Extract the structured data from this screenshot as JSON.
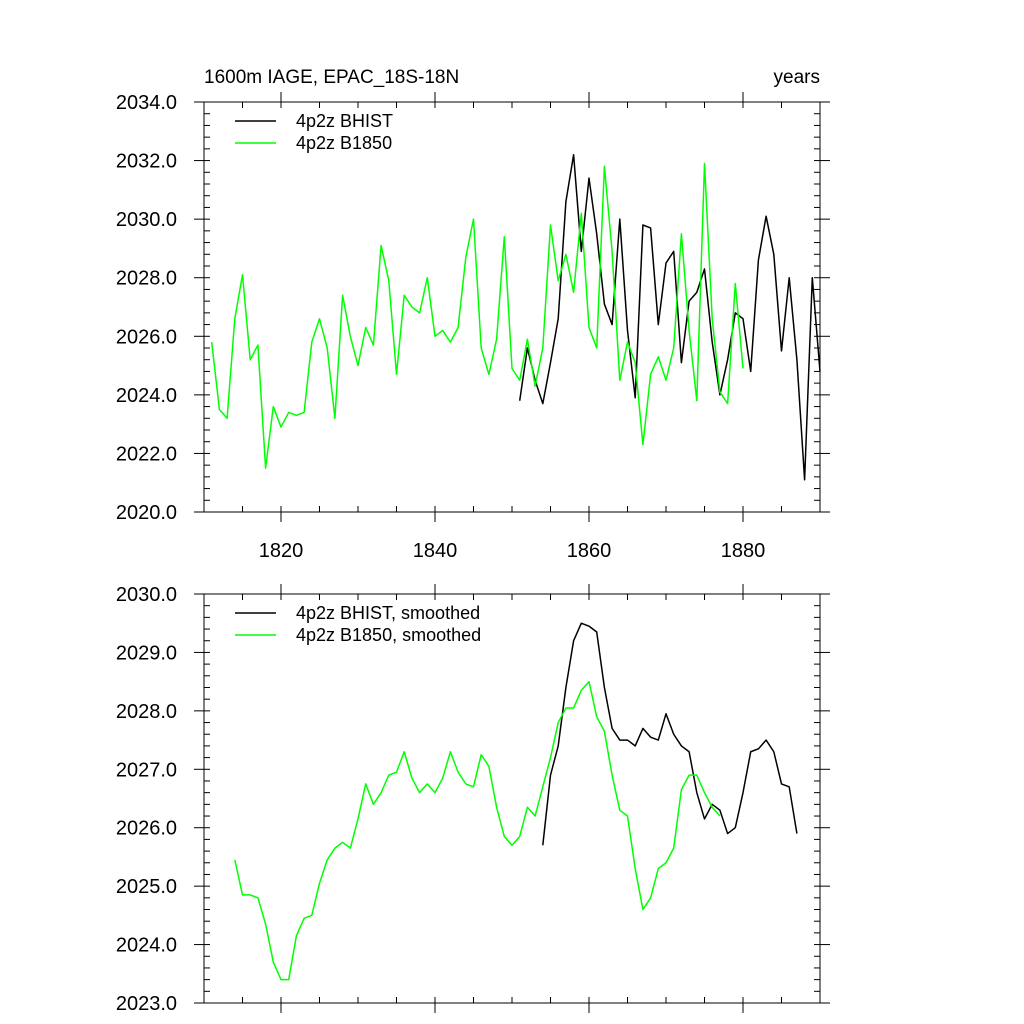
{
  "chart_data": [
    {
      "type": "line",
      "title": "1600m IAGE, EPAC_18S-18N",
      "title_right": "years",
      "xlabel": "",
      "ylabel": "",
      "xlim": [
        1810,
        1890
      ],
      "ylim": [
        2020,
        2034
      ],
      "xticks": [
        1820,
        1840,
        1860,
        1880
      ],
      "xtick_labels": [
        "1820",
        "1840",
        "1860",
        "1880"
      ],
      "yticks": [
        2020,
        2022,
        2024,
        2026,
        2028,
        2030,
        2032,
        2034
      ],
      "ytick_labels": [
        "2020.0",
        "2022.0",
        "2024.0",
        "2026.0",
        "2028.0",
        "2030.0",
        "2032.0",
        "2034.0"
      ],
      "grid": false,
      "legend_position": "top-left",
      "series": [
        {
          "name": "4p2z BHIST",
          "color": "#000000",
          "x": [
            1851,
            1852,
            1853,
            1854,
            1855,
            1856,
            1857,
            1858,
            1859,
            1860,
            1861,
            1862,
            1863,
            1864,
            1865,
            1866,
            1867,
            1868,
            1869,
            1870,
            1871,
            1872,
            1873,
            1874,
            1875,
            1876,
            1877,
            1878,
            1879,
            1880,
            1881,
            1882,
            1883,
            1884,
            1885,
            1886,
            1887,
            1888,
            1889,
            1890
          ],
          "y": [
            2023.8,
            2025.6,
            2024.5,
            2023.7,
            2025.1,
            2026.6,
            2030.6,
            2032.2,
            2028.9,
            2031.4,
            2029.5,
            2027.1,
            2026.4,
            2030.0,
            2026.2,
            2023.9,
            2029.8,
            2029.7,
            2026.4,
            2028.5,
            2028.9,
            2025.1,
            2027.2,
            2027.5,
            2028.3,
            2025.8,
            2024.0,
            2025.2,
            2026.8,
            2026.6,
            2024.8,
            2028.6,
            2030.1,
            2028.8,
            2025.5,
            2028.0,
            2025.2,
            2021.1,
            2028.0,
            2024.8
          ]
        },
        {
          "name": "4p2z B1850",
          "color": "#00ff00",
          "x": [
            1811,
            1812,
            1813,
            1814,
            1815,
            1816,
            1817,
            1818,
            1819,
            1820,
            1821,
            1822,
            1823,
            1824,
            1825,
            1826,
            1827,
            1828,
            1829,
            1830,
            1831,
            1832,
            1833,
            1834,
            1835,
            1836,
            1837,
            1838,
            1839,
            1840,
            1841,
            1842,
            1843,
            1844,
            1845,
            1846,
            1847,
            1848,
            1849,
            1850,
            1851,
            1852,
            1853,
            1854,
            1855,
            1856,
            1857,
            1858,
            1859,
            1860,
            1861,
            1862,
            1863,
            1864,
            1865,
            1866,
            1867,
            1868,
            1869,
            1870,
            1871,
            1872,
            1873,
            1874,
            1875,
            1876,
            1877,
            1878,
            1879,
            1880
          ],
          "y": [
            2025.8,
            2023.5,
            2023.2,
            2026.6,
            2028.1,
            2025.2,
            2025.7,
            2021.5,
            2023.6,
            2022.9,
            2023.4,
            2023.3,
            2023.4,
            2025.8,
            2026.6,
            2025.6,
            2023.2,
            2027.4,
            2026.0,
            2025.0,
            2026.3,
            2025.7,
            2029.1,
            2027.9,
            2024.7,
            2027.4,
            2027.0,
            2026.8,
            2028.0,
            2026.0,
            2026.2,
            2025.8,
            2026.3,
            2028.7,
            2030.0,
            2025.6,
            2024.7,
            2025.9,
            2029.4,
            2024.9,
            2024.5,
            2025.9,
            2024.3,
            2025.6,
            2029.8,
            2027.9,
            2028.8,
            2027.5,
            2030.2,
            2026.3,
            2025.6,
            2031.8,
            2028.9,
            2024.5,
            2025.8,
            2025.1,
            2022.3,
            2024.7,
            2025.3,
            2024.5,
            2025.6,
            2029.5,
            2026.2,
            2023.8,
            2031.9,
            2026.6,
            2024.1,
            2023.7,
            2027.8,
            2024.9
          ]
        }
      ]
    },
    {
      "type": "line",
      "title": "",
      "xlabel": "",
      "ylabel": "",
      "xlim": [
        1810,
        1890
      ],
      "ylim": [
        2023,
        2030
      ],
      "xticks": [
        1820,
        1840,
        1860,
        1880
      ],
      "xtick_labels": [],
      "yticks": [
        2023,
        2024,
        2025,
        2026,
        2027,
        2028,
        2029,
        2030
      ],
      "ytick_labels": [
        "2023.0",
        "2024.0",
        "2025.0",
        "2026.0",
        "2027.0",
        "2028.0",
        "2029.0",
        "2030.0"
      ],
      "grid": false,
      "legend_position": "top-left",
      "series": [
        {
          "name": "4p2z BHIST, smoothed",
          "color": "#000000",
          "x": [
            1854,
            1855,
            1856,
            1857,
            1858,
            1859,
            1860,
            1861,
            1862,
            1863,
            1864,
            1865,
            1866,
            1867,
            1868,
            1869,
            1870,
            1871,
            1872,
            1873,
            1874,
            1875,
            1876,
            1877,
            1878,
            1879,
            1880,
            1881,
            1882,
            1883,
            1884,
            1885,
            1886,
            1887
          ],
          "y": [
            2025.7,
            2026.9,
            2027.4,
            2028.4,
            2029.2,
            2029.5,
            2029.45,
            2029.35,
            2028.4,
            2027.7,
            2027.5,
            2027.5,
            2027.4,
            2027.7,
            2027.55,
            2027.5,
            2027.95,
            2027.6,
            2027.4,
            2027.3,
            2026.6,
            2026.15,
            2026.4,
            2026.3,
            2025.9,
            2026.0,
            2026.6,
            2027.3,
            2027.35,
            2027.5,
            2027.3,
            2026.75,
            2026.7,
            2025.9
          ]
        },
        {
          "name": "4p2z B1850, smoothed",
          "color": "#00ff00",
          "x": [
            1814,
            1815,
            1816,
            1817,
            1818,
            1819,
            1820,
            1821,
            1822,
            1823,
            1824,
            1825,
            1826,
            1827,
            1828,
            1829,
            1830,
            1831,
            1832,
            1833,
            1834,
            1835,
            1836,
            1837,
            1838,
            1839,
            1840,
            1841,
            1842,
            1843,
            1844,
            1845,
            1846,
            1847,
            1848,
            1849,
            1850,
            1851,
            1852,
            1853,
            1854,
            1855,
            1856,
            1857,
            1858,
            1859,
            1860,
            1861,
            1862,
            1863,
            1864,
            1865,
            1866,
            1867,
            1868,
            1869,
            1870,
            1871,
            1872,
            1873,
            1874,
            1875,
            1876,
            1877
          ],
          "y": [
            2025.45,
            2024.85,
            2024.85,
            2024.8,
            2024.35,
            2023.7,
            2023.4,
            2023.4,
            2024.15,
            2024.45,
            2024.5,
            2025.05,
            2025.45,
            2025.65,
            2025.75,
            2025.65,
            2026.15,
            2026.75,
            2026.4,
            2026.6,
            2026.9,
            2026.95,
            2027.3,
            2026.85,
            2026.6,
            2026.75,
            2026.6,
            2026.85,
            2027.3,
            2026.95,
            2026.75,
            2026.7,
            2027.25,
            2027.05,
            2026.35,
            2025.85,
            2025.7,
            2025.85,
            2026.35,
            2026.2,
            2026.7,
            2027.2,
            2027.8,
            2028.05,
            2028.05,
            2028.35,
            2028.5,
            2027.9,
            2027.65,
            2026.9,
            2026.3,
            2026.2,
            2025.3,
            2024.6,
            2024.8,
            2025.3,
            2025.4,
            2025.65,
            2026.65,
            2026.9,
            2026.9,
            2026.6,
            2026.35,
            2026.2
          ]
        }
      ]
    }
  ]
}
